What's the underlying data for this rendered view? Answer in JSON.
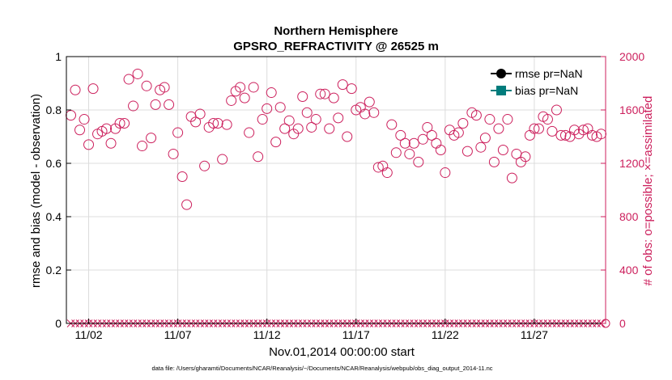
{
  "chart_data": {
    "type": "scatter",
    "title": "Northern Hemisphere",
    "subtitle": "GPSRO_REFRACTIVITY @ 26525 m",
    "xlabel": "Nov.01,2014 00:00:00 start",
    "ylabel_left": "rmse and bias (model - observation)",
    "ylabel_right": "# of obs: o=possible; ×=assimilated",
    "footnote": "data file: /Users/gharamti/Documents/NCAR/Reanalysis/~/Documents/NCAR/Reanalysis/webpub/obs_diag_output_2014-11.nc",
    "x_tick_labels": [
      "11/02",
      "11/07",
      "11/12",
      "11/17",
      "11/22",
      "11/27"
    ],
    "x_tick_values": [
      2,
      7,
      12,
      17,
      22,
      27
    ],
    "xlim": [
      0.75,
      31.0
    ],
    "ylim_left": [
      0,
      1
    ],
    "yticks_left": [
      "0",
      "0.2",
      "0.4",
      "0.6",
      "0.8",
      "1"
    ],
    "ylim_right": [
      0,
      2000
    ],
    "yticks_right": [
      "0",
      "400",
      "800",
      "1200",
      "1600",
      "2000"
    ],
    "grid": true,
    "legend_position": "top-right",
    "series": [
      {
        "name": "rmse pr=NaN",
        "values": [],
        "color": "#000000"
      },
      {
        "name": "bias pr=NaN",
        "values": [],
        "color": "#007c7c"
      }
    ],
    "possible_obs": {
      "x": [
        1.0,
        1.25,
        1.5,
        1.75,
        2.0,
        2.25,
        2.5,
        2.75,
        3.0,
        3.25,
        3.5,
        3.75,
        4.0,
        4.25,
        4.5,
        4.75,
        5.0,
        5.25,
        5.5,
        5.75,
        6.0,
        6.25,
        6.5,
        6.75,
        7.0,
        7.25,
        7.5,
        7.75,
        8.0,
        8.25,
        8.5,
        8.75,
        9.0,
        9.25,
        9.5,
        9.75,
        10.0,
        10.25,
        10.5,
        10.75,
        11.0,
        11.25,
        11.5,
        11.75,
        12.0,
        12.25,
        12.5,
        12.75,
        13.0,
        13.25,
        13.5,
        13.75,
        14.0,
        14.25,
        14.5,
        14.75,
        15.0,
        15.25,
        15.5,
        15.75,
        16.0,
        16.25,
        16.5,
        16.75,
        17.0,
        17.25,
        17.5,
        17.75,
        18.0,
        18.25,
        18.5,
        18.75,
        19.0,
        19.25,
        19.5,
        19.75,
        20.0,
        20.25,
        20.5,
        20.75,
        21.0,
        21.25,
        21.5,
        21.75,
        22.0,
        22.25,
        22.5,
        22.75,
        23.0,
        23.25,
        23.5,
        23.75,
        24.0,
        24.25,
        24.5,
        24.75,
        25.0,
        25.25,
        25.5,
        25.75,
        26.0,
        26.25,
        26.5,
        26.75,
        27.0,
        27.25,
        27.5,
        27.75,
        28.0,
        28.25,
        28.5,
        28.75,
        29.0,
        29.25,
        29.5,
        29.75,
        30.0,
        30.25,
        30.5,
        30.75
      ],
      "y": [
        1560,
        1750,
        1450,
        1530,
        1340,
        1760,
        1420,
        1440,
        1460,
        1350,
        1460,
        1500,
        1500,
        1830,
        1630,
        1870,
        1330,
        1780,
        1390,
        1640,
        1750,
        1770,
        1640,
        1270,
        1430,
        1100,
        890,
        1550,
        1510,
        1570,
        1180,
        1470,
        1500,
        1500,
        1230,
        1490,
        1670,
        1740,
        1770,
        1690,
        1430,
        1770,
        1250,
        1530,
        1610,
        1730,
        1360,
        1620,
        1460,
        1520,
        1420,
        1460,
        1700,
        1580,
        1470,
        1530,
        1720,
        1720,
        1460,
        1690,
        1540,
        1790,
        1400,
        1760,
        1600,
        1620,
        1570,
        1660,
        1580,
        1170,
        1180,
        1130,
        1490,
        1280,
        1410,
        1350,
        1270,
        1350,
        1210,
        1380,
        1470,
        1410,
        1350,
        1300,
        1130,
        1450,
        1410,
        1430,
        1500,
        1290,
        1580,
        1560,
        1320,
        1390,
        1530,
        1210,
        1460,
        1300,
        1530,
        1090,
        1270,
        1210,
        1250,
        1410,
        1460,
        1460,
        1550,
        1530,
        1440,
        1600,
        1410,
        1410,
        1400,
        1450,
        1420,
        1450,
        1460,
        1410,
        1400,
        1420
      ]
    },
    "assimilated_obs": {
      "x": [
        1.0,
        1.25,
        1.5,
        1.75,
        2.0,
        2.25,
        2.5,
        2.75,
        3.0,
        3.25,
        3.5,
        3.75,
        4.0,
        4.25,
        4.5,
        4.75,
        5.0,
        5.25,
        5.5,
        5.75,
        6.0,
        6.25,
        6.5,
        6.75,
        7.0,
        7.25,
        7.5,
        7.75,
        8.0,
        8.25,
        8.5,
        8.75,
        9.0,
        9.25,
        9.5,
        9.75,
        10.0,
        10.25,
        10.5,
        10.75,
        11.0,
        11.25,
        11.5,
        11.75,
        12.0,
        12.25,
        12.5,
        12.75,
        13.0,
        13.25,
        13.5,
        13.75,
        14.0,
        14.25,
        14.5,
        14.75,
        15.0,
        15.25,
        15.5,
        15.75,
        16.0,
        16.25,
        16.5,
        16.75,
        17.0,
        17.25,
        17.5,
        17.75,
        18.0,
        18.25,
        18.5,
        18.75,
        19.0,
        19.25,
        19.5,
        19.75,
        20.0,
        20.25,
        20.5,
        20.75,
        21.0,
        21.25,
        21.5,
        21.75,
        22.0,
        22.25,
        22.5,
        22.75,
        23.0,
        23.25,
        23.5,
        23.75,
        24.0,
        24.25,
        24.5,
        24.75,
        25.0,
        25.25,
        25.5,
        25.75,
        26.0,
        26.25,
        26.5,
        26.75,
        27.0,
        27.25,
        27.5,
        27.75,
        28.0,
        28.25,
        28.5,
        28.75,
        29.0,
        29.25,
        29.5,
        29.75,
        30.0,
        30.25,
        30.5,
        30.75
      ],
      "y": [
        0,
        0,
        0,
        0,
        0,
        0,
        0,
        0,
        0,
        0,
        0,
        0,
        0,
        0,
        0,
        0,
        0,
        0,
        0,
        0,
        0,
        0,
        0,
        0,
        0,
        0,
        0,
        0,
        0,
        0,
        0,
        0,
        0,
        0,
        0,
        0,
        0,
        0,
        0,
        0,
        0,
        0,
        0,
        0,
        0,
        0,
        0,
        0,
        0,
        0,
        0,
        0,
        0,
        0,
        0,
        0,
        0,
        0,
        0,
        0,
        0,
        0,
        0,
        0,
        0,
        0,
        0,
        0,
        0,
        0,
        0,
        0,
        0,
        0,
        0,
        0,
        0,
        0,
        0,
        0,
        0,
        0,
        0,
        0,
        0,
        0,
        0,
        0,
        0,
        0,
        0,
        0,
        0,
        0,
        0,
        0,
        0,
        0,
        0,
        0,
        0,
        0,
        0,
        0,
        0,
        0,
        0,
        0,
        0,
        0,
        0,
        0,
        0,
        0,
        0,
        0,
        0,
        0,
        0,
        0
      ]
    },
    "colors": {
      "obs": "#cc1f5c",
      "rmse": "#000000",
      "bias": "#007c7c",
      "grid": "#dcdcdc"
    }
  }
}
